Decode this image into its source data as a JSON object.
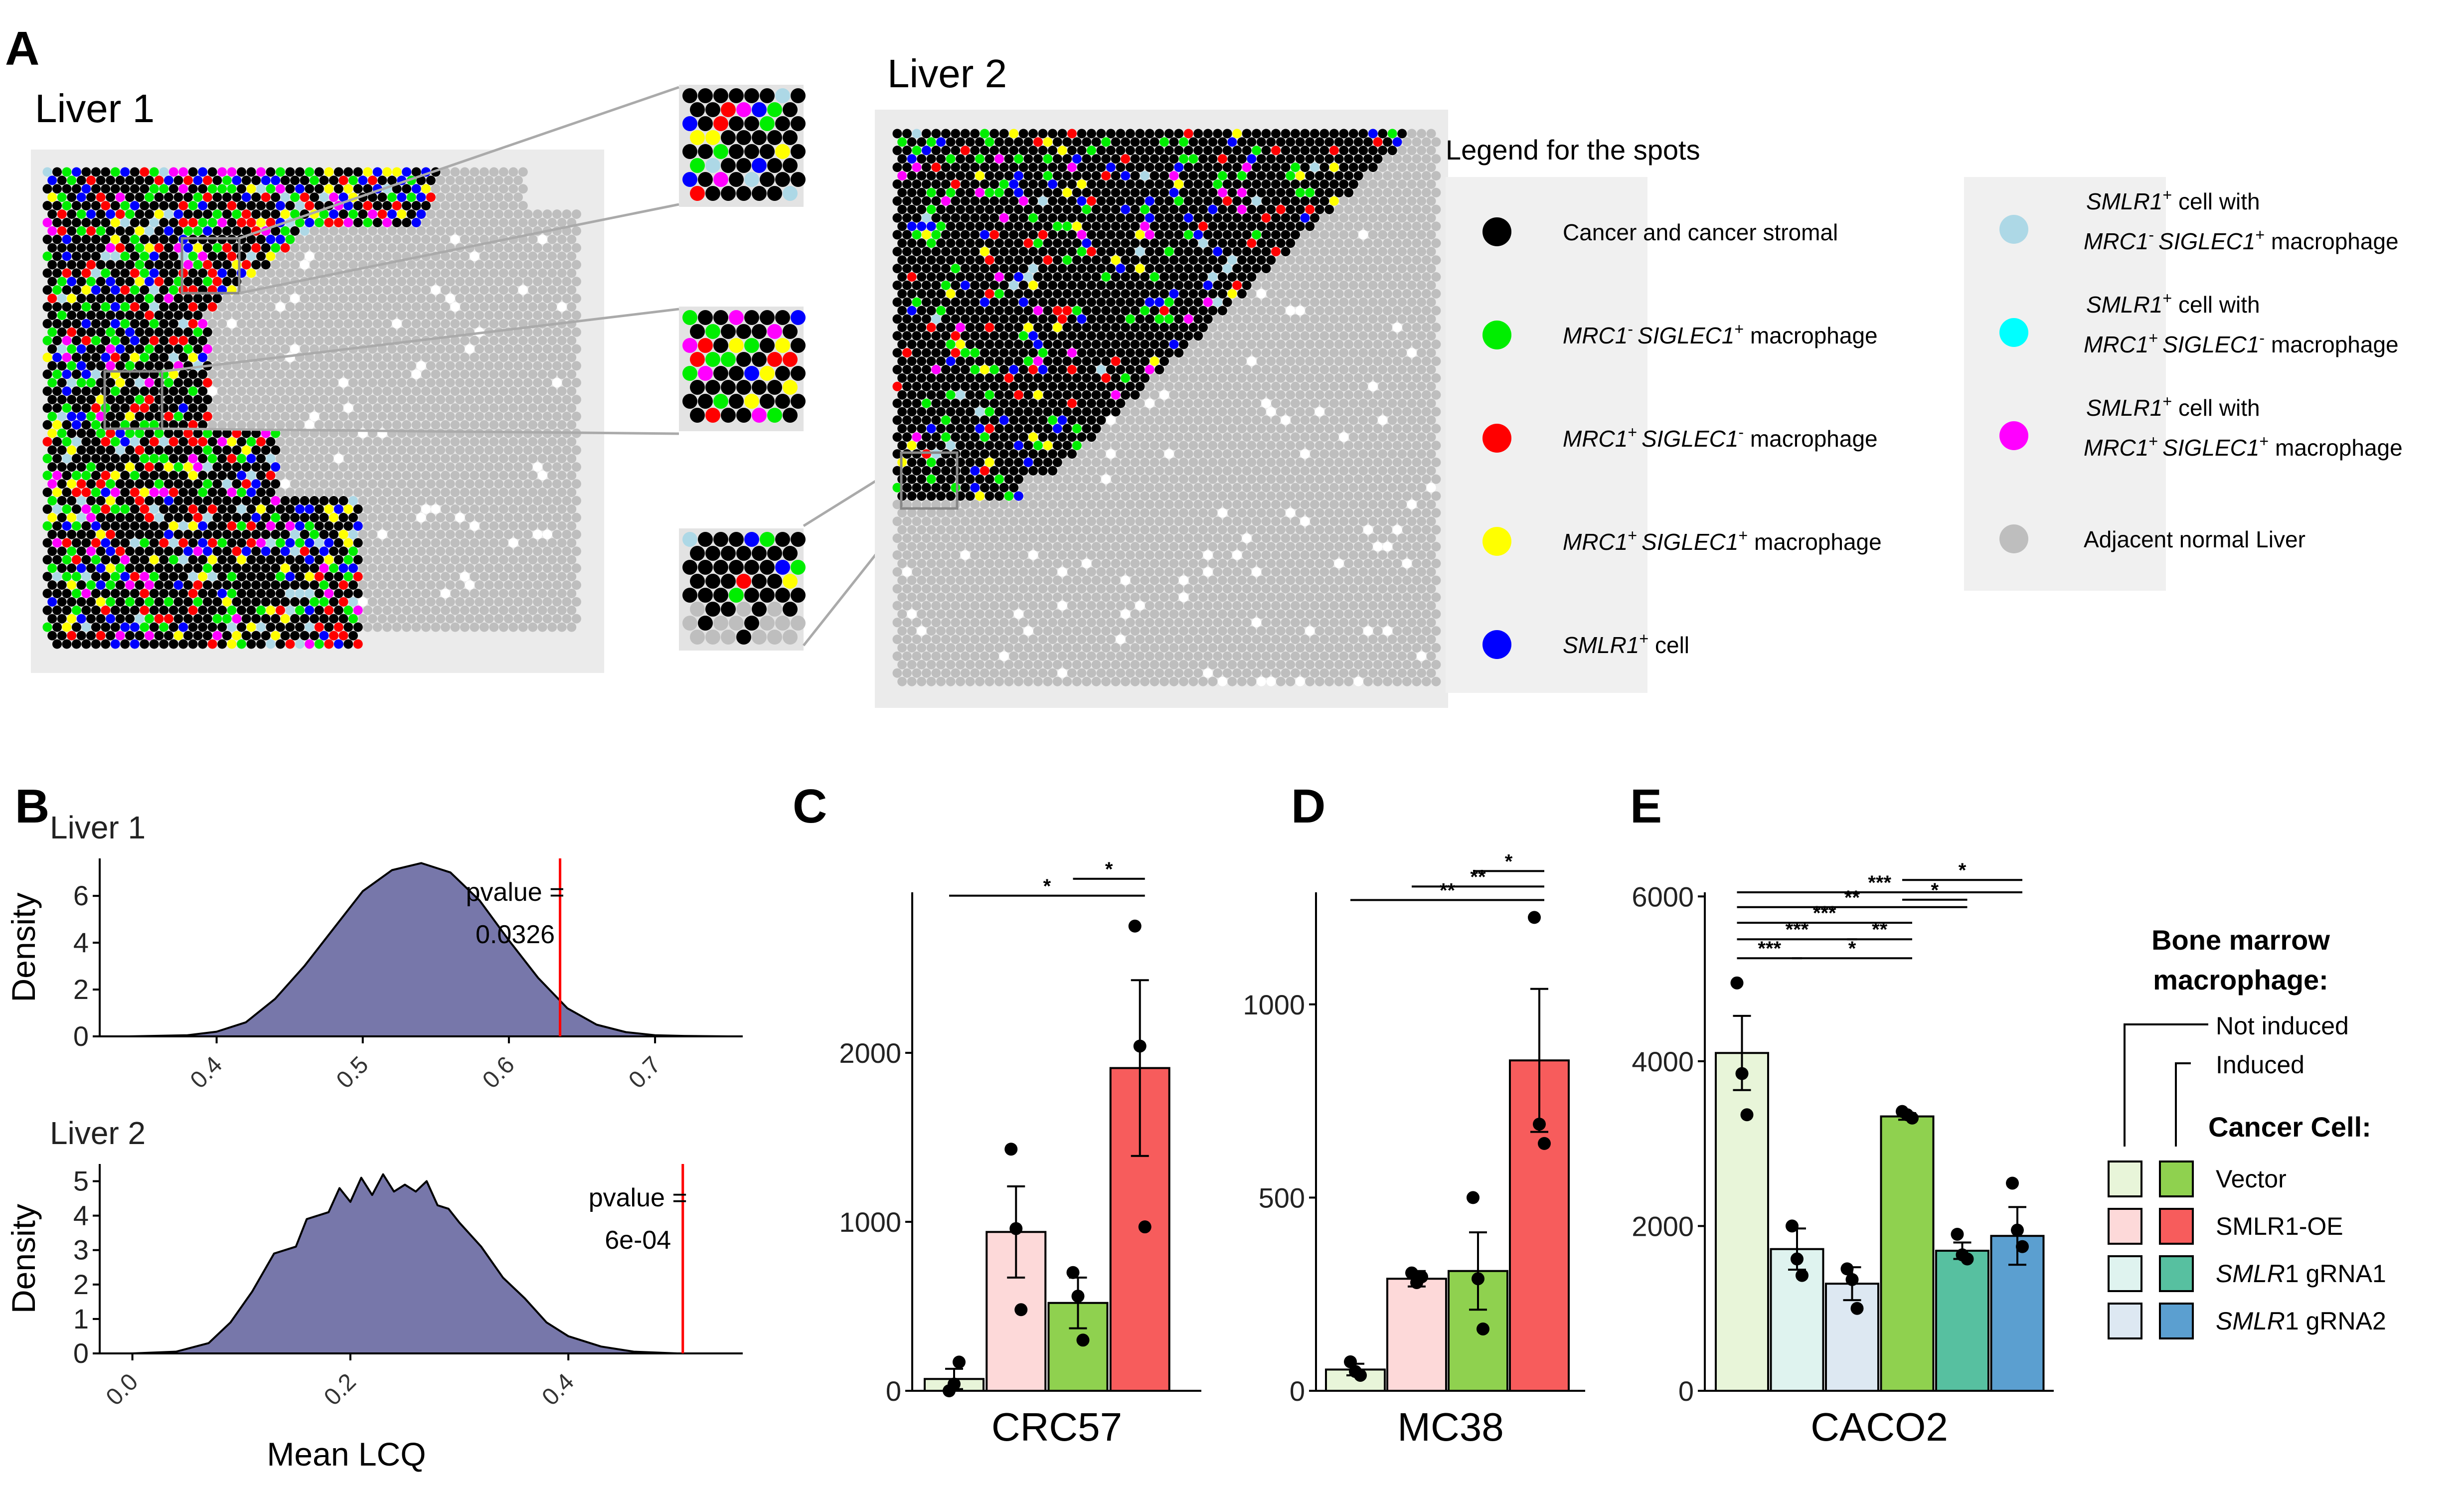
{
  "panels": {
    "A": {
      "letter": "A",
      "liver1_title": "Liver 1",
      "liver2_title": "Liver 2",
      "legend": {
        "title": "Legend for the spots",
        "left_items": [
          {
            "color": "#000000",
            "parts": [
              {
                "t": "Cancer and cancer stromal",
                "i": false
              }
            ]
          },
          {
            "color": "#00ee00",
            "parts": [
              {
                "t": "MRC1",
                "i": true
              },
              {
                "t": "- ",
                "i": false,
                "sup": true
              },
              {
                "t": "SIGLEC1",
                "i": true
              },
              {
                "t": "+",
                "i": false,
                "sup": true
              },
              {
                "t": " macrophage",
                "i": false
              }
            ]
          },
          {
            "color": "#ff0000",
            "parts": [
              {
                "t": "MRC1",
                "i": true
              },
              {
                "t": "+ ",
                "i": false,
                "sup": true
              },
              {
                "t": "SIGLEC1",
                "i": true
              },
              {
                "t": "-",
                "i": false,
                "sup": true
              },
              {
                "t": " macrophage",
                "i": false
              }
            ]
          },
          {
            "color": "#ffff00",
            "parts": [
              {
                "t": "MRC1",
                "i": true
              },
              {
                "t": "+ ",
                "i": false,
                "sup": true
              },
              {
                "t": "SIGLEC1",
                "i": true
              },
              {
                "t": "+",
                "i": false,
                "sup": true
              },
              {
                "t": " macrophage",
                "i": false
              }
            ]
          },
          {
            "color": "#0000ff",
            "parts": [
              {
                "t": "SMLR1",
                "i": true
              },
              {
                "t": "+",
                "i": false,
                "sup": true
              },
              {
                "t": " cell",
                "i": false
              }
            ]
          }
        ],
        "right_items": [
          {
            "color": "#add8e6",
            "line1": [
              {
                "t": "SMLR1",
                "i": true
              },
              {
                "t": "+",
                "i": false,
                "sup": true
              },
              {
                "t": " cell with",
                "i": false
              }
            ],
            "line2": [
              {
                "t": "MRC1",
                "i": true
              },
              {
                "t": "- ",
                "i": false,
                "sup": true
              },
              {
                "t": "SIGLEC1",
                "i": true
              },
              {
                "t": "+",
                "i": false,
                "sup": true
              },
              {
                "t": " macrophage",
                "i": false
              }
            ]
          },
          {
            "color": "#00ffff",
            "line1": [
              {
                "t": "SMLR1",
                "i": true
              },
              {
                "t": "+",
                "i": false,
                "sup": true
              },
              {
                "t": " cell with",
                "i": false
              }
            ],
            "line2": [
              {
                "t": "MRC1",
                "i": true
              },
              {
                "t": "+ ",
                "i": false,
                "sup": true
              },
              {
                "t": "SIGLEC1",
                "i": true
              },
              {
                "t": "-",
                "i": false,
                "sup": true
              },
              {
                "t": " macrophage",
                "i": false
              }
            ]
          },
          {
            "color": "#ff00ff",
            "line1": [
              {
                "t": "SMLR1",
                "i": true
              },
              {
                "t": "+",
                "i": false,
                "sup": true
              },
              {
                "t": " cell with",
                "i": false
              }
            ],
            "line2": [
              {
                "t": "MRC1",
                "i": true
              },
              {
                "t": "+ ",
                "i": false,
                "sup": true
              },
              {
                "t": "SIGLEC1",
                "i": true
              },
              {
                "t": "+",
                "i": false,
                "sup": true
              },
              {
                "t": " macrophage",
                "i": false
              }
            ]
          },
          {
            "color": "#bebebe",
            "line1": [
              {
                "t": "Adjacent normal Liver",
                "i": false
              }
            ],
            "line2": []
          }
        ]
      }
    },
    "B": {
      "letter": "B"
    },
    "C": {
      "letter": "C"
    },
    "D": {
      "letter": "D"
    },
    "E": {
      "letter": "E"
    }
  },
  "chart_data": [
    {
      "id": "B1",
      "type": "area",
      "subtitle": "Liver 1",
      "ylabel": "Density",
      "xlabel": "",
      "xlim": [
        0.32,
        0.76
      ],
      "ylim": [
        0,
        7.6
      ],
      "xticks": [
        "0.4",
        "0.5",
        "0.6",
        "0.7"
      ],
      "xtick_values": [
        0.4,
        0.5,
        0.6,
        0.7
      ],
      "yticks": [
        "0",
        "2",
        "4",
        "6"
      ],
      "ytick_values": [
        0,
        2,
        4,
        6
      ],
      "density": {
        "x": [
          0.34,
          0.38,
          0.4,
          0.42,
          0.44,
          0.46,
          0.48,
          0.5,
          0.52,
          0.54,
          0.56,
          0.58,
          0.6,
          0.62,
          0.64,
          0.66,
          0.68,
          0.7,
          0.72,
          0.75
        ],
        "y": [
          0.0,
          0.05,
          0.2,
          0.6,
          1.6,
          3.0,
          4.6,
          6.2,
          7.1,
          7.4,
          7.0,
          5.8,
          4.1,
          2.5,
          1.2,
          0.5,
          0.18,
          0.05,
          0.02,
          0.0
        ]
      },
      "observed": 0.635,
      "pvalue_label": "pvalue =",
      "pvalue": "0.0326",
      "fill": "#7777aa"
    },
    {
      "id": "B2",
      "type": "area",
      "subtitle": "Liver 2",
      "ylabel": "Density",
      "xlabel": "Mean LCQ",
      "xlim": [
        -0.03,
        0.56
      ],
      "ylim": [
        0,
        5.5
      ],
      "xticks": [
        "0.0",
        "0.2",
        "0.4"
      ],
      "xtick_values": [
        0.0,
        0.2,
        0.4
      ],
      "yticks": [
        "0",
        "1",
        "2",
        "3",
        "4",
        "5"
      ],
      "ytick_values": [
        0,
        1,
        2,
        3,
        4,
        5
      ],
      "density": {
        "x": [
          0.0,
          0.04,
          0.07,
          0.09,
          0.11,
          0.13,
          0.15,
          0.16,
          0.18,
          0.19,
          0.2,
          0.21,
          0.22,
          0.23,
          0.24,
          0.25,
          0.26,
          0.27,
          0.28,
          0.29,
          0.3,
          0.32,
          0.34,
          0.36,
          0.38,
          0.4,
          0.43,
          0.46,
          0.5
        ],
        "y": [
          0.0,
          0.05,
          0.3,
          0.9,
          1.8,
          2.9,
          3.1,
          3.9,
          4.1,
          4.8,
          4.4,
          5.1,
          4.6,
          5.2,
          4.7,
          4.9,
          4.7,
          5.0,
          4.3,
          4.2,
          3.8,
          3.1,
          2.2,
          1.6,
          0.9,
          0.5,
          0.2,
          0.05,
          0.0
        ]
      },
      "observed": 0.505,
      "pvalue_label": "pvalue =",
      "pvalue": "6e-04",
      "fill": "#7777aa"
    },
    {
      "id": "C",
      "type": "bar",
      "category": "CRC57",
      "ylim": [
        0,
        2950
      ],
      "yticks": [
        "0",
        "1000",
        "2000"
      ],
      "ytick_values": [
        0,
        1000,
        2000
      ],
      "bars": [
        {
          "value": 70,
          "se": 60,
          "color": "#e8f5d9",
          "points": [
            0,
            40,
            170
          ]
        },
        {
          "value": 940,
          "se": 270,
          "color": "#fdd9d9",
          "points": [
            1430,
            960,
            480
          ]
        },
        {
          "value": 520,
          "se": 150,
          "color": "#8fd14f",
          "points": [
            700,
            560,
            300
          ]
        },
        {
          "value": 1910,
          "se": 520,
          "color": "#f75c5c",
          "points": [
            2750,
            2040,
            970
          ]
        }
      ],
      "sig": [
        {
          "from": 0,
          "to": 3,
          "label": "*",
          "y": 2930
        },
        {
          "from": 2,
          "to": 3,
          "label": "*",
          "y": 3030
        }
      ]
    },
    {
      "id": "D",
      "type": "bar",
      "category": "MC38",
      "ylim": [
        0,
        1290
      ],
      "yticks": [
        "0",
        "500",
        "1000"
      ],
      "ytick_values": [
        0,
        500,
        1000
      ],
      "bars": [
        {
          "value": 55,
          "se": 15,
          "color": "#e8f5d9",
          "points": [
            75,
            50,
            40
          ]
        },
        {
          "value": 290,
          "se": 20,
          "color": "#fdd9d9",
          "points": [
            305,
            280,
            295
          ]
        },
        {
          "value": 310,
          "se": 100,
          "color": "#8fd14f",
          "points": [
            500,
            290,
            160
          ]
        },
        {
          "value": 855,
          "se": 185,
          "color": "#f75c5c",
          "points": [
            1225,
            690,
            640
          ]
        }
      ],
      "sig": [
        {
          "from": 0,
          "to": 3,
          "label": "**",
          "y": 1270
        },
        {
          "from": 1,
          "to": 3,
          "label": "**",
          "y": 1305
        },
        {
          "from": 2,
          "to": 3,
          "label": "*",
          "y": 1345
        }
      ]
    },
    {
      "id": "E",
      "type": "bar",
      "category": "CACO2",
      "ylim": [
        0,
        6050
      ],
      "yticks": [
        "0",
        "2000",
        "4000",
        "6000"
      ],
      "ytick_values": [
        0,
        2000,
        4000,
        6000
      ],
      "bars": [
        {
          "value": 4100,
          "se": 450,
          "color": "#e8f5d9",
          "points": [
            4950,
            3850,
            3350
          ]
        },
        {
          "value": 1720,
          "se": 250,
          "color": "#dff3ef",
          "points": [
            2000,
            1600,
            1400
          ]
        },
        {
          "value": 1300,
          "se": 200,
          "color": "#dde8f2",
          "points": [
            1480,
            1350,
            1000
          ]
        },
        {
          "value": 3330,
          "se": 40,
          "color": "#8fd14f",
          "points": [
            3390,
            3350,
            3310
          ]
        },
        {
          "value": 1700,
          "se": 100,
          "color": "#57c0a0",
          "points": [
            1900,
            1650,
            1600
          ]
        },
        {
          "value": 1880,
          "se": 350,
          "color": "#5b9fd0",
          "points": [
            2520,
            1950,
            1750
          ]
        }
      ],
      "sig": [
        {
          "from": 0,
          "to": 1,
          "label": "***",
          "y": 5250
        },
        {
          "from": 0,
          "to": 2,
          "label": "***",
          "y": 5480
        },
        {
          "from": 1,
          "to": 3,
          "label": "*",
          "y": 5250
        },
        {
          "from": 2,
          "to": 3,
          "label": "**",
          "y": 5480
        },
        {
          "from": 0,
          "to": 3,
          "label": "***",
          "y": 5680
        },
        {
          "from": 0,
          "to": 4,
          "label": "**",
          "y": 5870
        },
        {
          "from": 0,
          "to": 5,
          "label": "***",
          "y": 6050
        },
        {
          "from": 3,
          "to": 4,
          "label": "*",
          "y": 5960
        },
        {
          "from": 3,
          "to": 5,
          "label": "*",
          "y": 6200
        }
      ]
    }
  ],
  "legendE": {
    "title_line1": "Bone marrow",
    "title_line2": "macrophage:",
    "not_induced": "Not induced",
    "induced": "Induced",
    "cancer_title": "Cancer Cell:",
    "rows": [
      {
        "light": "#e8f5d9",
        "dark": "#8fd14f",
        "parts": [
          {
            "t": "Vector",
            "i": false
          }
        ]
      },
      {
        "light": "#fdd9d9",
        "dark": "#f75c5c",
        "parts": [
          {
            "t": "SMLR1-OE",
            "i": false
          }
        ]
      },
      {
        "light": "#dff3ef",
        "dark": "#57c0a0",
        "parts": [
          {
            "t": "SMLR",
            "i": true
          },
          {
            "t": "1 gRNA1",
            "i": false
          }
        ]
      },
      {
        "light": "#dde8f2",
        "dark": "#5b9fd0",
        "parts": [
          {
            "t": "SMLR",
            "i": true
          },
          {
            "t": "1 gRNA2",
            "i": false
          }
        ]
      }
    ]
  }
}
